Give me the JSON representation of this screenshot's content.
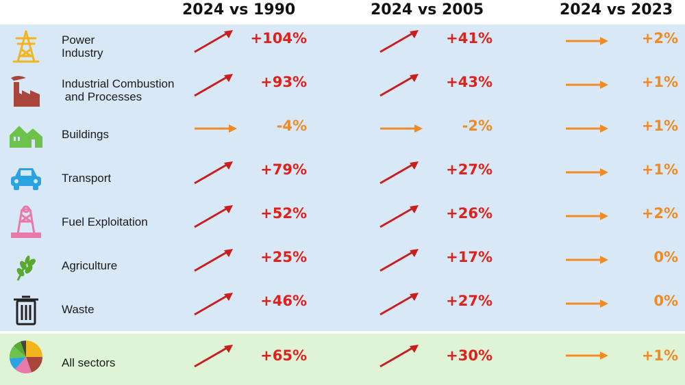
{
  "header": {
    "col1": "2024 vs 1990",
    "col2": "2024 vs 2005",
    "col3": "2024 vs 2023"
  },
  "colors": {
    "increase": "#e0201b",
    "stable": "#f08a24",
    "panel_blue": "#d9e8f6",
    "panel_green": "#dff4d6"
  },
  "rows": [
    {
      "label": "Power\nIndustry",
      "icon": "power-pylon-icon",
      "v1990": "+104%",
      "v2005": "+41%",
      "v2023": "+2%",
      "t1990": "up",
      "t2005": "up",
      "t2023": "flat"
    },
    {
      "label": "Industrial Combustion\n and Processes",
      "icon": "factory-icon",
      "v1990": "+93%",
      "v2005": "+43%",
      "v2023": "+1%",
      "t1990": "up",
      "t2005": "up",
      "t2023": "flat"
    },
    {
      "label": "Buildings",
      "icon": "houses-icon",
      "v1990": "-4%",
      "v2005": "-2%",
      "v2023": "+1%",
      "t1990": "flat",
      "t2005": "flat",
      "t2023": "flat"
    },
    {
      "label": "Transport",
      "icon": "car-icon",
      "v1990": "+79%",
      "v2005": "+27%",
      "v2023": "+1%",
      "t1990": "up",
      "t2005": "up",
      "t2023": "flat"
    },
    {
      "label": "Fuel Exploitation",
      "icon": "mine-shaft-icon",
      "v1990": "+52%",
      "v2005": "+26%",
      "v2023": "+2%",
      "t1990": "up",
      "t2005": "up",
      "t2023": "flat"
    },
    {
      "label": "Agriculture",
      "icon": "wheat-icon",
      "v1990": "+25%",
      "v2005": "+17%",
      "v2023": "0%",
      "t1990": "up",
      "t2005": "up",
      "t2023": "flat"
    },
    {
      "label": "Waste",
      "icon": "trash-bin-icon",
      "v1990": "+46%",
      "v2005": "+27%",
      "v2023": "0%",
      "t1990": "up",
      "t2005": "up",
      "t2023": "flat"
    }
  ],
  "total": {
    "label": "All sectors",
    "icon": "pie-chart-icon",
    "v1990": "+65%",
    "v2005": "+30%",
    "v2023": "+1%",
    "t1990": "up",
    "t2005": "up",
    "t2023": "flat"
  }
}
